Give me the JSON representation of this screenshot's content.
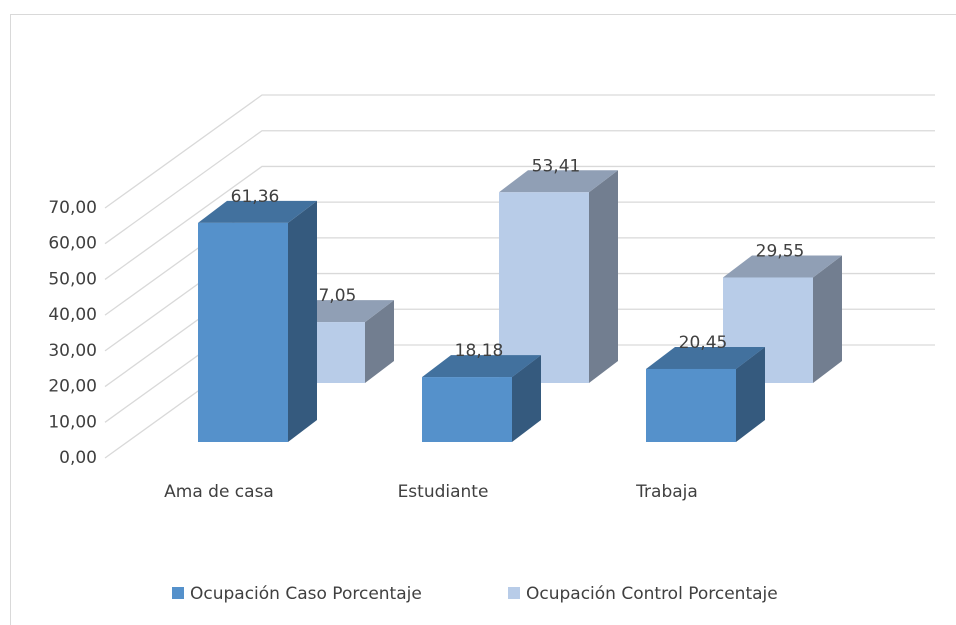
{
  "chart_data": {
    "type": "bar3d",
    "categories": [
      "Ama de casa",
      "Estudiante",
      "Trabaja"
    ],
    "series": [
      {
        "name": "Ocupación Caso Porcentaje",
        "color": "#5591cb",
        "values": [
          61.36,
          18.18,
          20.45
        ],
        "value_labels": [
          "61,36",
          "18,18",
          "20,45"
        ]
      },
      {
        "name": "Ocupación Control Porcentaje",
        "color": "#b8cce8",
        "values": [
          17.05,
          53.41,
          29.55
        ],
        "value_labels": [
          "17,05",
          "53,41",
          "29,55"
        ]
      }
    ],
    "ylim": [
      0,
      70
    ],
    "yticks": [
      {
        "value": 0,
        "label": "0,00"
      },
      {
        "value": 10,
        "label": "10,00"
      },
      {
        "value": 20,
        "label": "20,00"
      },
      {
        "value": 30,
        "label": "30,00"
      },
      {
        "value": 40,
        "label": "40,00"
      },
      {
        "value": 50,
        "label": "50,00"
      },
      {
        "value": 60,
        "label": "60,00"
      },
      {
        "value": 70,
        "label": "70,00"
      }
    ],
    "grid": true,
    "legend": "bottom"
  }
}
